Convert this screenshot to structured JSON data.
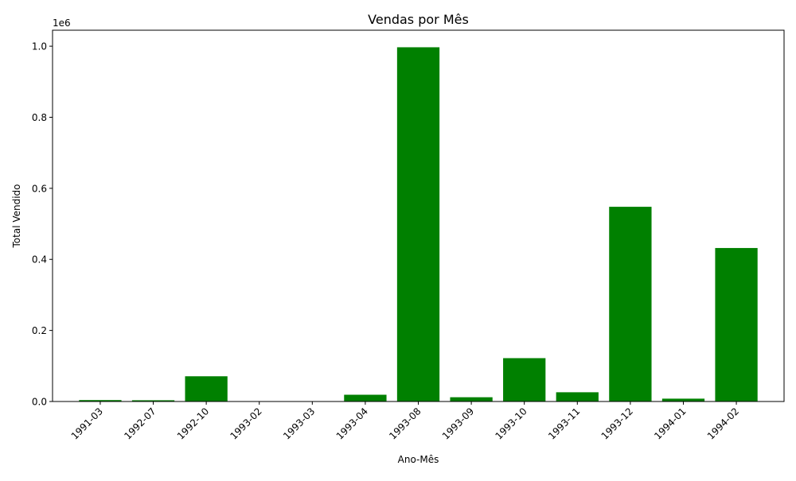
{
  "chart_data": {
    "type": "bar",
    "title": "Vendas por Mês",
    "xlabel": "Ano-Mês",
    "ylabel": "Total Vendido",
    "y_offset_label": "1e6",
    "categories": [
      "1991-03",
      "1992-07",
      "1992-10",
      "1993-02",
      "1993-03",
      "1993-04",
      "1993-08",
      "1993-09",
      "1993-10",
      "1993-11",
      "1993-12",
      "1994-01",
      "1994-02"
    ],
    "values": [
      4000,
      3500,
      71000,
      500,
      300,
      19000,
      997000,
      12000,
      122000,
      26000,
      548000,
      8000,
      432000
    ],
    "ylim": [
      0,
      1045000
    ],
    "yticks": [
      0,
      200000,
      400000,
      600000,
      800000,
      1000000
    ],
    "ytick_labels": [
      "0.0",
      "0.2",
      "0.4",
      "0.6",
      "0.8",
      "1.0"
    ],
    "bar_color": "#008000",
    "grid": false,
    "xtick_rotation_deg": 45
  }
}
